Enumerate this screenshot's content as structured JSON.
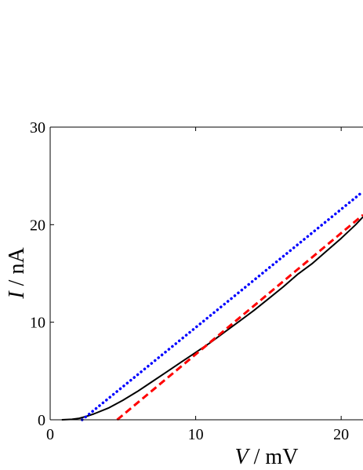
{
  "chart_data": {
    "type": "line",
    "title": "",
    "xlabel": {
      "symbol": "V",
      "unit": " / mV"
    },
    "ylabel": {
      "symbol": "I",
      "unit": " / nA"
    },
    "xlim": [
      0,
      21.5
    ],
    "ylim": [
      0,
      30
    ],
    "x_ticks": [
      0,
      10,
      20
    ],
    "x_tick_labels": [
      "0",
      "10",
      "20"
    ],
    "y_ticks": [
      0,
      10,
      20,
      30
    ],
    "y_tick_labels": [
      "0",
      "10",
      "20",
      "30"
    ],
    "grid": false,
    "legend": "none",
    "series": [
      {
        "style": "solid",
        "color": "#000000",
        "x": [
          0.8,
          1.5,
          2.0,
          2.5,
          3.0,
          4.0,
          5.0,
          6.0,
          7.0,
          8.0,
          9.0,
          10.0,
          11.0,
          12.0,
          13.0,
          14.0,
          15.0,
          16.0,
          17.0,
          18.0,
          19.0,
          20.0,
          21.0,
          21.5
        ],
        "y": [
          0.0,
          0.05,
          0.15,
          0.35,
          0.6,
          1.2,
          2.0,
          2.9,
          3.9,
          4.9,
          5.9,
          6.9,
          7.9,
          9.0,
          10.1,
          11.2,
          12.4,
          13.6,
          14.9,
          16.0,
          17.3,
          18.6,
          20.0,
          20.8
        ]
      },
      {
        "style": "dashed",
        "color": "#ff0000",
        "x": [
          4.6,
          21.5
        ],
        "y": [
          0.0,
          21.0
        ]
      },
      {
        "style": "dotted",
        "color": "#0000ff",
        "x": [
          2.2,
          21.5
        ],
        "y": [
          0.0,
          23.4
        ]
      }
    ]
  }
}
